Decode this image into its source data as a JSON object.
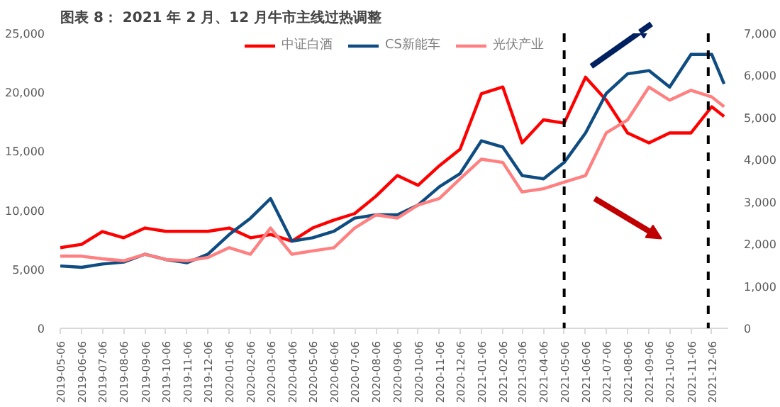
{
  "chart_data": {
    "type": "line",
    "title": "图表 8： 2021 年 2 月、12 月牛市主线过热调整",
    "x": [
      "2019-05-06",
      "2019-06-06",
      "2019-07-06",
      "2019-08-06",
      "2019-09-06",
      "2019-10-06",
      "2019-11-06",
      "2019-12-06",
      "2020-01-06",
      "2020-02-06",
      "2020-03-06",
      "2020-04-06",
      "2020-05-06",
      "2020-06-06",
      "2020-07-06",
      "2020-08-06",
      "2020-09-06",
      "2020-10-06",
      "2020-11-06",
      "2020-12-06",
      "2021-01-06",
      "2021-02-06",
      "2021-03-06",
      "2021-04-06",
      "2021-05-06",
      "2021-06-06",
      "2021-07-06",
      "2021-08-06",
      "2021-09-06",
      "2021-10-06",
      "2021-11-06",
      "2021-12-06",
      "2021-12-24"
    ],
    "series": [
      {
        "name": "中证白酒",
        "color": "#ff0000",
        "values": [
          6830,
          7110,
          8200,
          7670,
          8500,
          8220,
          8220,
          8220,
          8500,
          7670,
          7950,
          7390,
          8500,
          9170,
          9720,
          11200,
          12950,
          12120,
          13780,
          15170,
          19890,
          20450,
          15720,
          17670,
          17390,
          21280,
          19340,
          16560,
          15720,
          16560,
          16560,
          18780,
          17950
        ]
      },
      {
        "name": "CS新能车",
        "color": "#0f4c81",
        "axis": "y2",
        "values": [
          1478,
          1447,
          1524,
          1571,
          1758,
          1633,
          1556,
          1758,
          2225,
          2614,
          3080,
          2069,
          2147,
          2302,
          2614,
          2692,
          2692,
          2925,
          3360,
          3672,
          4450,
          4300,
          3625,
          3547,
          3936,
          4636,
          5570,
          6040,
          6115,
          5725,
          6500,
          6500,
          5800
        ]
      },
      {
        "name": "光伏产业",
        "color": "#ff8080",
        "axis": "y2",
        "values": [
          1711,
          1711,
          1649,
          1602,
          1758,
          1633,
          1602,
          1680,
          1913,
          1758,
          2380,
          1758,
          1835,
          1913,
          2380,
          2692,
          2614,
          2925,
          3080,
          3547,
          4014,
          3936,
          3236,
          3314,
          3470,
          3625,
          4636,
          4947,
          5725,
          5414,
          5648,
          5492,
          5259
        ]
      }
    ],
    "xlim": [
      "2019-05-06",
      "2021-12-30"
    ],
    "xticks": [
      {
        "value": "2019-05-06",
        "label": "2019-05-06"
      },
      {
        "value": "2019-06-06",
        "label": "2019-06-06"
      },
      {
        "value": "2019-07-06",
        "label": "2019-07-06"
      },
      {
        "value": "2019-08-06",
        "label": "2019-08-06"
      },
      {
        "value": "2019-09-06",
        "label": "2019-09-06"
      },
      {
        "value": "2019-10-06",
        "label": "2019-10-06"
      },
      {
        "value": "2019-11-06",
        "label": "2019-11-06"
      },
      {
        "value": "2019-12-06",
        "label": "2019-12-06"
      },
      {
        "value": "2020-01-06",
        "label": "2020-01-06"
      },
      {
        "value": "2020-02-06",
        "label": "2020-02-06"
      },
      {
        "value": "2020-03-06",
        "label": "2020-03-06"
      },
      {
        "value": "2020-04-06",
        "label": "2020-04-06"
      },
      {
        "value": "2020-05-06",
        "label": "2020-05-06"
      },
      {
        "value": "2020-06-06",
        "label": "2020-06-06"
      },
      {
        "value": "2020-07-06",
        "label": "2020-07-06"
      },
      {
        "value": "2020-08-06",
        "label": "2020-08-06"
      },
      {
        "value": "2020-09-06",
        "label": "2020-09-06"
      },
      {
        "value": "2020-10-06",
        "label": "2020-10-06"
      },
      {
        "value": "2020-11-06",
        "label": "2020-11-06"
      },
      {
        "value": "2020-12-06",
        "label": "2020-12-06"
      },
      {
        "value": "2021-01-06",
        "label": "2021-01-06"
      },
      {
        "value": "2021-02-06",
        "label": "2021-02-06"
      },
      {
        "value": "2021-03-06",
        "label": "2021-03-06"
      },
      {
        "value": "2021-04-06",
        "label": "2021-04-06"
      },
      {
        "value": "2021-05-06",
        "label": "2021-05-06"
      },
      {
        "value": "2021-06-06",
        "label": "2021-06-06"
      },
      {
        "value": "2021-07-06",
        "label": "2021-07-06"
      },
      {
        "value": "2021-08-06",
        "label": "2021-08-06"
      },
      {
        "value": "2021-09-06",
        "label": "2021-09-06"
      },
      {
        "value": "2021-10-06",
        "label": "2021-10-06"
      },
      {
        "value": "2021-11-06",
        "label": "2021-11-06"
      },
      {
        "value": "2021-12-06",
        "label": "2021-12-06"
      }
    ],
    "ylim": [
      0,
      25000
    ],
    "yticks": [
      {
        "value": 0,
        "label": "0"
      },
      {
        "value": 5000,
        "label": "5,000"
      },
      {
        "value": 10000,
        "label": "10,000"
      },
      {
        "value": 15000,
        "label": "15,000"
      },
      {
        "value": 20000,
        "label": "20,000"
      },
      {
        "value": 25000,
        "label": "25,000"
      }
    ],
    "y2lim": [
      0,
      7000
    ],
    "y2ticks": [
      {
        "value": 0,
        "label": "0"
      },
      {
        "value": 1000,
        "label": "1,000"
      },
      {
        "value": 2000,
        "label": "2,000"
      },
      {
        "value": 3000,
        "label": "3,000"
      },
      {
        "value": 4000,
        "label": "4,000"
      },
      {
        "value": 5000,
        "label": "5,000"
      },
      {
        "value": 6000,
        "label": "6,000"
      },
      {
        "value": 7000,
        "label": "7,000"
      }
    ],
    "ref_lines": [
      {
        "axis": "x",
        "value": "2021-05-06",
        "color": "#000000",
        "line_style": "dashed"
      },
      {
        "axis": "x",
        "value": "2021-12-01",
        "color": "#000000",
        "line_style": "dashed"
      }
    ],
    "grid": false,
    "legend": "top",
    "marker": "none",
    "line_style": "solid"
  }
}
